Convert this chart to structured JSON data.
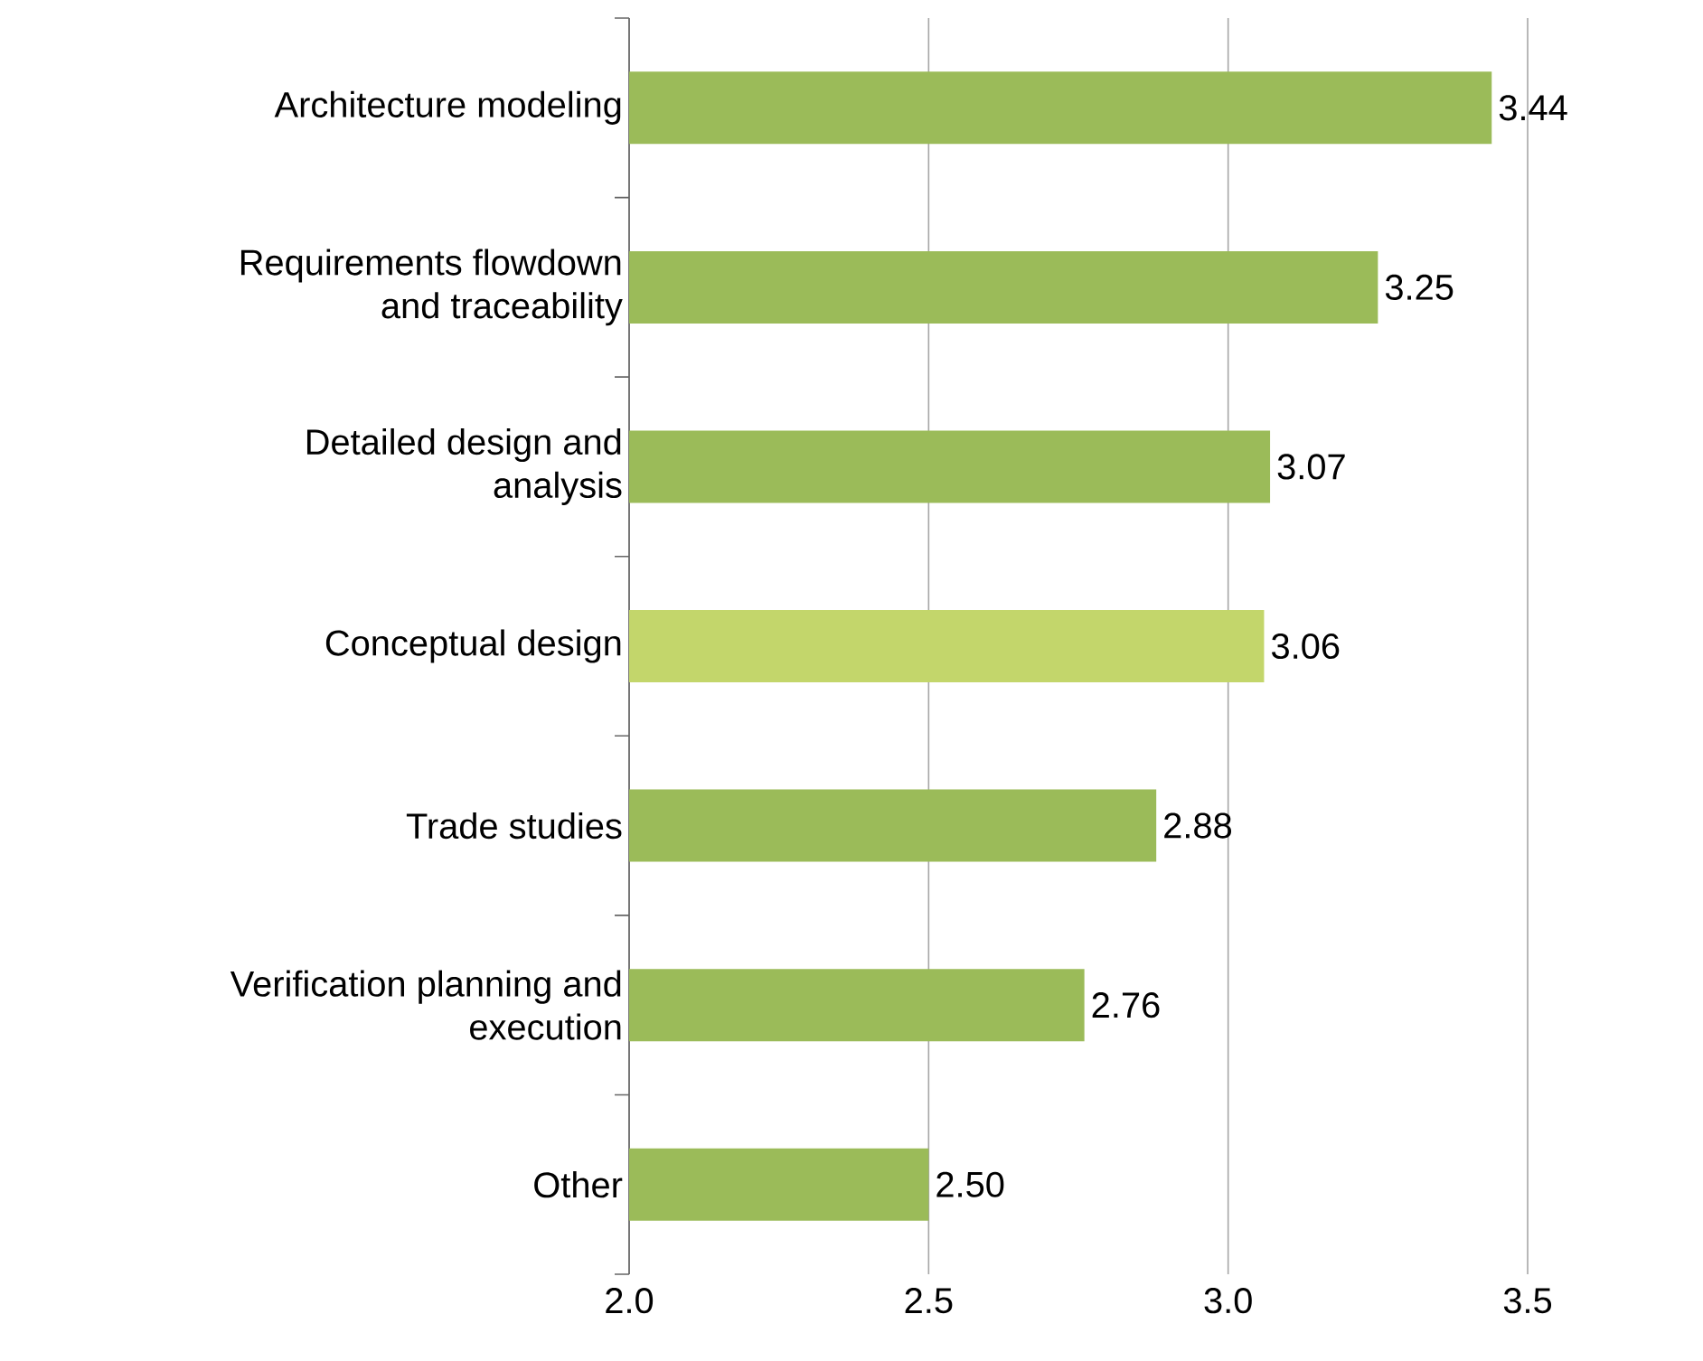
{
  "chart_data": {
    "type": "bar",
    "orientation": "horizontal",
    "categories": [
      "Architecture modeling",
      "Requirements flowdown and traceability",
      "Detailed design and analysis",
      "Conceptual design",
      "Trade studies",
      "Verification planning and execution",
      "Other"
    ],
    "values": [
      3.44,
      3.25,
      3.07,
      3.06,
      2.88,
      2.76,
      2.5
    ],
    "colors": [
      "#9bbb59",
      "#9bbb59",
      "#9bbb59",
      "#c3d66b",
      "#9bbb59",
      "#9bbb59",
      "#9bbb59"
    ],
    "xlim": [
      2.0,
      3.5
    ],
    "xticks": [
      {
        "value": 2.0,
        "label": "2.0"
      },
      {
        "value": 2.5,
        "label": "2.5"
      },
      {
        "value": 3.0,
        "label": "3.0"
      },
      {
        "value": 3.5,
        "label": "3.5"
      }
    ],
    "value_labels": [
      "3.44",
      "3.25",
      "3.07",
      "3.06",
      "2.88",
      "2.76",
      "2.50"
    ],
    "grid": "x"
  }
}
